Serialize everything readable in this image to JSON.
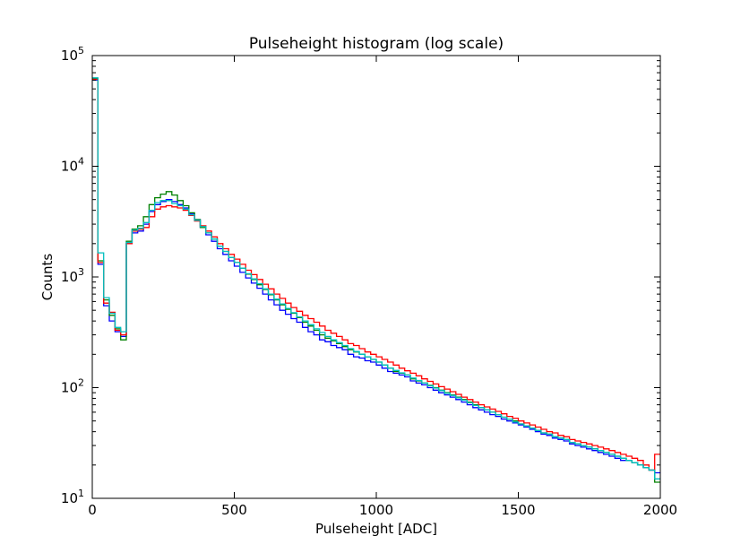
{
  "chart_data": {
    "type": "line",
    "title": "Pulseheight histogram (log scale)",
    "xlabel": "Pulseheight [ADC]",
    "ylabel": "Counts",
    "xlim": [
      0,
      2000
    ],
    "ylim": [
      10,
      100000
    ],
    "yscale": "log",
    "grid": false,
    "xticks": [
      {
        "value": 0,
        "label": "0"
      },
      {
        "value": 500,
        "label": "500"
      },
      {
        "value": 1000,
        "label": "1000"
      },
      {
        "value": 1500,
        "label": "1500"
      },
      {
        "value": 2000,
        "label": "2000"
      }
    ],
    "yticks": [
      {
        "value": 10,
        "base": "10",
        "exp": "1"
      },
      {
        "value": 100,
        "base": "10",
        "exp": "2"
      },
      {
        "value": 1000,
        "base": "10",
        "exp": "3"
      },
      {
        "value": 10000,
        "base": "10",
        "exp": "4"
      },
      {
        "value": 100000,
        "base": "10",
        "exp": "5"
      }
    ],
    "bin_width": 20,
    "series": [
      {
        "color": "#0000ff",
        "values": [
          60000,
          1300,
          550,
          400,
          320,
          290,
          2000,
          2500,
          2600,
          3000,
          3900,
          4500,
          4800,
          5000,
          4800,
          4500,
          4200,
          3700,
          3300,
          2800,
          2400,
          2100,
          1800,
          1600,
          1400,
          1250,
          1100,
          980,
          880,
          790,
          700,
          620,
          560,
          500,
          460,
          420,
          390,
          350,
          320,
          300,
          270,
          260,
          240,
          230,
          220,
          200,
          190,
          185,
          175,
          170,
          160,
          150,
          140,
          135,
          130,
          125,
          115,
          110,
          106,
          100,
          95,
          90,
          86,
          82,
          78,
          74,
          70,
          66,
          63,
          60,
          57,
          55,
          52,
          50,
          48,
          46,
          44,
          42,
          40,
          38,
          37,
          35,
          34,
          33,
          31,
          30,
          29,
          28,
          27,
          26,
          25,
          24,
          23,
          22,
          22,
          21,
          20,
          19,
          18,
          17
        ]
      },
      {
        "color": "#008000",
        "values": [
          62000,
          1400,
          620,
          450,
          340,
          270,
          2100,
          2700,
          2900,
          3500,
          4500,
          5200,
          5600,
          5900,
          5500,
          4900,
          4400,
          3800,
          3300,
          2800,
          2500,
          2200,
          1900,
          1700,
          1500,
          1350,
          1200,
          1060,
          950,
          850,
          770,
          690,
          620,
          560,
          510,
          470,
          430,
          390,
          360,
          330,
          300,
          280,
          265,
          250,
          235,
          220,
          210,
          200,
          190,
          180,
          170,
          160,
          150,
          140,
          135,
          130,
          120,
          115,
          110,
          105,
          100,
          95,
          90,
          86,
          82,
          78,
          74,
          70,
          66,
          63,
          60,
          57,
          54,
          52,
          50,
          47,
          45,
          43,
          41,
          39,
          38,
          36,
          35,
          34,
          32,
          31,
          30,
          29,
          28,
          27,
          26,
          25,
          24,
          23,
          22,
          21,
          20,
          19,
          18,
          14
        ]
      },
      {
        "color": "#ff0000",
        "values": [
          61000,
          1350,
          580,
          480,
          330,
          300,
          2000,
          2600,
          2700,
          2800,
          3500,
          4100,
          4300,
          4400,
          4300,
          4200,
          4000,
          3600,
          3200,
          2900,
          2600,
          2300,
          2000,
          1800,
          1600,
          1450,
          1300,
          1150,
          1050,
          950,
          860,
          780,
          700,
          640,
          580,
          530,
          490,
          450,
          420,
          390,
          360,
          330,
          310,
          290,
          270,
          250,
          240,
          225,
          210,
          200,
          190,
          180,
          170,
          160,
          150,
          142,
          135,
          128,
          120,
          114,
          108,
          102,
          97,
          92,
          87,
          82,
          78,
          74,
          70,
          67,
          64,
          61,
          58,
          55,
          53,
          50,
          48,
          46,
          44,
          42,
          40,
          39,
          37,
          36,
          34,
          33,
          32,
          31,
          30,
          29,
          28,
          27,
          26,
          25,
          24,
          23,
          22,
          20,
          18,
          25
        ]
      },
      {
        "color": "#00bfbf",
        "values": [
          63000,
          1650,
          650,
          470,
          350,
          320,
          2050,
          2650,
          2750,
          3100,
          4000,
          4700,
          4900,
          4900,
          4600,
          4400,
          4100,
          3650,
          3250,
          2850,
          2500,
          2200,
          1900,
          1700,
          1500,
          1350,
          1200,
          1070,
          960,
          870,
          780,
          700,
          630,
          570,
          520,
          475,
          435,
          400,
          370,
          340,
          315,
          290,
          270,
          255,
          240,
          225,
          212,
          200,
          190,
          180,
          170,
          160,
          150,
          143,
          136,
          130,
          122,
          116,
          110,
          104,
          99,
          94,
          89,
          85,
          81,
          77,
          73,
          69,
          66,
          63,
          60,
          57,
          54,
          52,
          49,
          47,
          45,
          43,
          41,
          39,
          38,
          36,
          35,
          34,
          32,
          31,
          30,
          29,
          28,
          27,
          26,
          25,
          24,
          23,
          22,
          21,
          20,
          19,
          18,
          15
        ]
      }
    ]
  }
}
